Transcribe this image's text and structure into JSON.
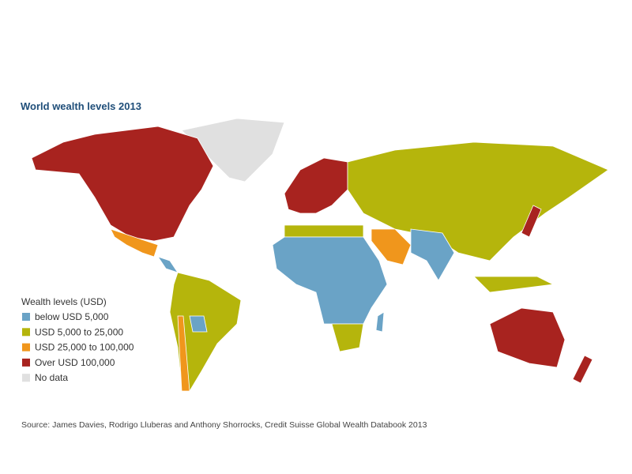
{
  "title": "World wealth levels 2013",
  "legend": {
    "title": "Wealth levels (USD)",
    "items": [
      {
        "label": "below USD 5,000",
        "color": "#6aa3c6"
      },
      {
        "label": "USD 5,000 to 25,000",
        "color": "#b5b50c"
      },
      {
        "label": "USD 25,000 to 100,000",
        "color": "#f0961c"
      },
      {
        "label": "Over USD 100,000",
        "color": "#a8231f"
      },
      {
        "label": "No data",
        "color": "#e0e0e0"
      }
    ]
  },
  "source": "Source: James Davies, Rodrigo Lluberas and Anthony Shorrocks, Credit Suisse Global Wealth Databook 2013"
}
